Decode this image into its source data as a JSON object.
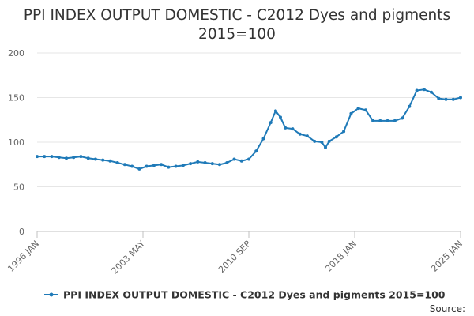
{
  "chart_data": {
    "type": "line",
    "title_line1": "PPI INDEX OUTPUT DOMESTIC - C2012 Dyes and pigments",
    "title_line2": "2015=100",
    "series_name": "PPI INDEX OUTPUT DOMESTIC - C2012 Dyes and pigments 2015=100",
    "source_label": "Source:",
    "color": "#1f7ab8",
    "grid": true,
    "legend_position": "bottom",
    "ylim": [
      0,
      200
    ],
    "y_ticks": [
      0,
      50,
      100,
      150,
      200
    ],
    "x_range": [
      "1996-01",
      "2025-01"
    ],
    "x_tick_labels": [
      "1996 JAN",
      "2003 MAY",
      "2010 SEP",
      "2018 JAN",
      "2025 JAN"
    ],
    "points": [
      [
        "1996-01",
        84
      ],
      [
        "1996-07",
        84
      ],
      [
        "1997-01",
        84
      ],
      [
        "1997-07",
        83
      ],
      [
        "1998-01",
        82
      ],
      [
        "1998-07",
        83
      ],
      [
        "1999-01",
        84
      ],
      [
        "1999-07",
        82
      ],
      [
        "2000-01",
        81
      ],
      [
        "2000-07",
        80
      ],
      [
        "2001-01",
        79
      ],
      [
        "2001-07",
        77
      ],
      [
        "2002-01",
        75
      ],
      [
        "2002-07",
        73
      ],
      [
        "2003-01",
        70
      ],
      [
        "2003-07",
        73
      ],
      [
        "2004-01",
        74
      ],
      [
        "2004-07",
        75
      ],
      [
        "2005-01",
        72
      ],
      [
        "2005-07",
        73
      ],
      [
        "2006-01",
        74
      ],
      [
        "2006-07",
        76
      ],
      [
        "2007-01",
        78
      ],
      [
        "2007-07",
        77
      ],
      [
        "2008-01",
        76
      ],
      [
        "2008-07",
        75
      ],
      [
        "2009-01",
        77
      ],
      [
        "2009-07",
        81
      ],
      [
        "2010-01",
        79
      ],
      [
        "2010-07",
        81
      ],
      [
        "2011-01",
        90
      ],
      [
        "2011-07",
        104
      ],
      [
        "2012-01",
        122
      ],
      [
        "2012-05",
        135
      ],
      [
        "2012-09",
        128
      ],
      [
        "2013-01",
        116
      ],
      [
        "2013-07",
        115
      ],
      [
        "2014-01",
        109
      ],
      [
        "2014-07",
        107
      ],
      [
        "2015-01",
        101
      ],
      [
        "2015-07",
        100
      ],
      [
        "2015-10",
        94
      ],
      [
        "2016-01",
        101
      ],
      [
        "2016-07",
        106
      ],
      [
        "2017-01",
        112
      ],
      [
        "2017-07",
        132
      ],
      [
        "2018-01",
        138
      ],
      [
        "2018-07",
        136
      ],
      [
        "2019-01",
        124
      ],
      [
        "2019-07",
        124
      ],
      [
        "2020-01",
        124
      ],
      [
        "2020-07",
        124
      ],
      [
        "2021-01",
        127
      ],
      [
        "2021-07",
        140
      ],
      [
        "2022-01",
        158
      ],
      [
        "2022-07",
        159
      ],
      [
        "2023-01",
        156
      ],
      [
        "2023-07",
        149
      ],
      [
        "2024-01",
        148
      ],
      [
        "2024-07",
        148
      ],
      [
        "2025-01",
        150
      ]
    ]
  }
}
